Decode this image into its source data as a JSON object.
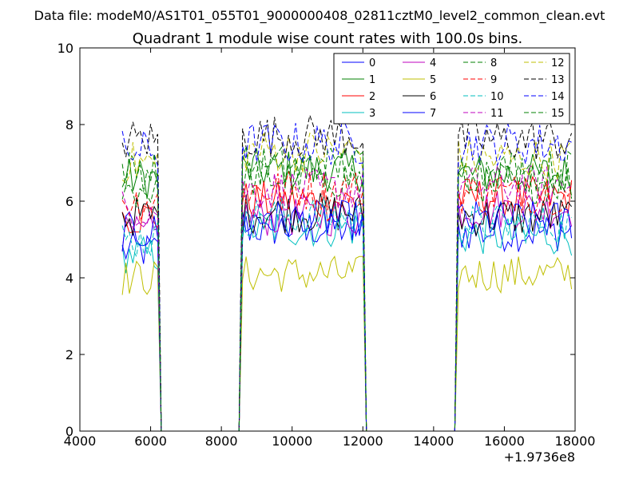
{
  "suptitle": "Data file: modeM0/AS1T01_055T01_9000000408_02811cztM0_level2_common_clean.evt",
  "chart_data": {
    "type": "line",
    "title": "Quadrant 1 module wise count rates with 100.0s bins.",
    "xlabel": "",
    "ylabel": "",
    "x_offset_label": "+1.9736e8",
    "xlim": [
      4000,
      18000
    ],
    "ylim": [
      0,
      10
    ],
    "xticks": [
      4000,
      6000,
      8000,
      10000,
      12000,
      14000,
      16000,
      18000
    ],
    "yticks": [
      0,
      2,
      4,
      6,
      8,
      10
    ],
    "grid": false,
    "legend_position": "top-right",
    "legend_columns": 4,
    "segments": [
      {
        "x_start": 5200,
        "x_end": 6200,
        "step": 100
      },
      {
        "x_start": 8600,
        "x_end": 12000,
        "step": 100
      },
      {
        "x_start": 14700,
        "x_end": 17900,
        "step": 100
      }
    ],
    "gap_level": 0,
    "series": [
      {
        "name": "0",
        "color": "#0000ff",
        "dash": "solid",
        "segment_levels": [
          4.7,
          5.3,
          5.2
        ]
      },
      {
        "name": "1",
        "color": "#008000",
        "dash": "solid",
        "segment_levels": [
          6.6,
          6.8,
          6.7
        ]
      },
      {
        "name": "2",
        "color": "#ff0000",
        "dash": "solid",
        "segment_levels": [
          5.6,
          6.0,
          6.1
        ]
      },
      {
        "name": "3",
        "color": "#00bfbf",
        "dash": "solid",
        "segment_levels": [
          4.6,
          5.3,
          5.1
        ]
      },
      {
        "name": "4",
        "color": "#bf00bf",
        "dash": "solid",
        "segment_levels": [
          5.1,
          5.6,
          5.8
        ]
      },
      {
        "name": "5",
        "color": "#bfbf00",
        "dash": "solid",
        "segment_levels": [
          4.0,
          4.1,
          4.1
        ]
      },
      {
        "name": "6",
        "color": "#000000",
        "dash": "solid",
        "segment_levels": [
          5.6,
          5.7,
          5.6
        ]
      },
      {
        "name": "7",
        "color": "#0000ff",
        "dash": "solid",
        "segment_levels": [
          5.2,
          5.5,
          5.5
        ]
      },
      {
        "name": "8",
        "color": "#008000",
        "dash": "dashed",
        "segment_levels": [
          6.3,
          6.6,
          6.5
        ]
      },
      {
        "name": "9",
        "color": "#ff0000",
        "dash": "dashed",
        "segment_levels": [
          6.0,
          6.3,
          6.2
        ]
      },
      {
        "name": "10",
        "color": "#00bfbf",
        "dash": "dashed",
        "segment_levels": [
          5.0,
          5.6,
          5.4
        ]
      },
      {
        "name": "11",
        "color": "#bf00bf",
        "dash": "dashed",
        "segment_levels": [
          5.8,
          6.3,
          6.4
        ]
      },
      {
        "name": "12",
        "color": "#bfbf00",
        "dash": "dashed",
        "segment_levels": [
          7.0,
          7.3,
          7.1
        ]
      },
      {
        "name": "13",
        "color": "#000000",
        "dash": "dashed",
        "segment_levels": [
          7.6,
          7.7,
          7.6
        ]
      },
      {
        "name": "14",
        "color": "#0000ff",
        "dash": "dashed",
        "segment_levels": [
          7.3,
          7.5,
          7.5
        ]
      },
      {
        "name": "15",
        "color": "#008000",
        "dash": "dashed",
        "segment_levels": [
          6.8,
          6.9,
          6.8
        ]
      }
    ]
  }
}
